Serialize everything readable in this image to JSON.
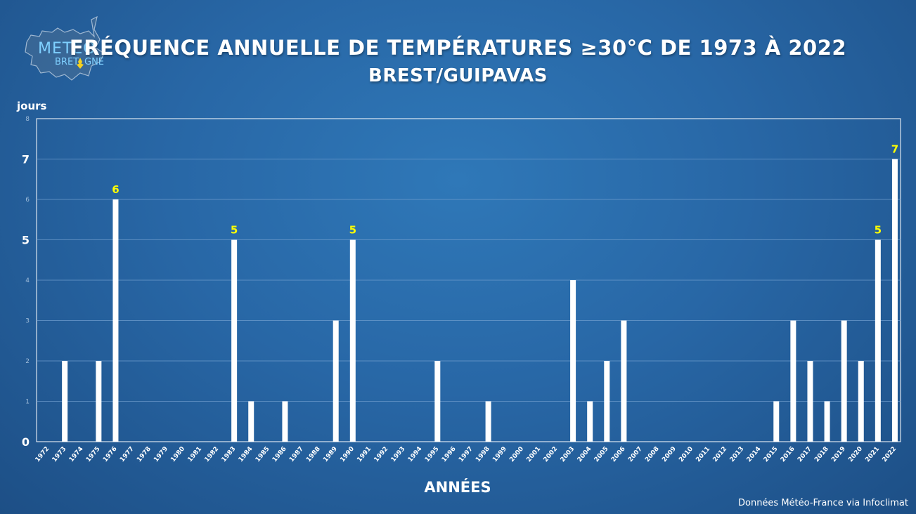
{
  "header": {
    "title": "FRÉQUENCE ANNUELLE DE TEMPÉRATURES ≥30°C DE 1973 À 2022",
    "subtitle": "BREST/GUIPAVAS"
  },
  "logo": {
    "line1": "METEO",
    "line2a": "BRET",
    "line2b": "GNE",
    "icon": "brittany-map-logo"
  },
  "footer": {
    "source": "Données Météo-France via Infoclimat"
  },
  "colors": {
    "bar": "#ffffff",
    "highlight_label": "#ffff00",
    "grid": "#6f9ccc",
    "text": "#ffffff"
  },
  "chart_data": {
    "type": "bar",
    "ylabel": "jours",
    "xlabel": "ANNÉES",
    "ylim": [
      0,
      8
    ],
    "yticks": [
      0,
      1,
      2,
      3,
      4,
      5,
      6,
      7,
      8
    ],
    "emphasized_yticks": [
      0,
      5,
      7
    ],
    "grid": true,
    "categories": [
      "1972",
      "1973",
      "1974",
      "1975",
      "1976",
      "1977",
      "1978",
      "1979",
      "1980",
      "1981",
      "1982",
      "1983",
      "1984",
      "1985",
      "1986",
      "1987",
      "1988",
      "1989",
      "1990",
      "1991",
      "1992",
      "1993",
      "1994",
      "1995",
      "1996",
      "1997",
      "1998",
      "1999",
      "2000",
      "2001",
      "2002",
      "2003",
      "2004",
      "2005",
      "2006",
      "2007",
      "2008",
      "2009",
      "2010",
      "2011",
      "2012",
      "2013",
      "2014",
      "2015",
      "2016",
      "2017",
      "2018",
      "2019",
      "2020",
      "2021",
      "2022"
    ],
    "values": [
      0,
      2,
      0,
      2,
      6,
      0,
      0,
      0,
      0,
      0,
      0,
      5,
      1,
      0,
      1,
      0,
      0,
      3,
      5,
      0,
      0,
      0,
      0,
      2,
      0,
      0,
      1,
      0,
      0,
      0,
      0,
      4,
      1,
      2,
      3,
      0,
      0,
      0,
      0,
      0,
      0,
      0,
      0,
      1,
      3,
      2,
      1,
      3,
      2,
      5,
      7
    ],
    "data_labels": [
      {
        "category": "1976",
        "text": "6"
      },
      {
        "category": "1983",
        "text": "5"
      },
      {
        "category": "1990",
        "text": "5"
      },
      {
        "category": "2021",
        "text": "5"
      },
      {
        "category": "2022",
        "text": "7"
      }
    ]
  }
}
